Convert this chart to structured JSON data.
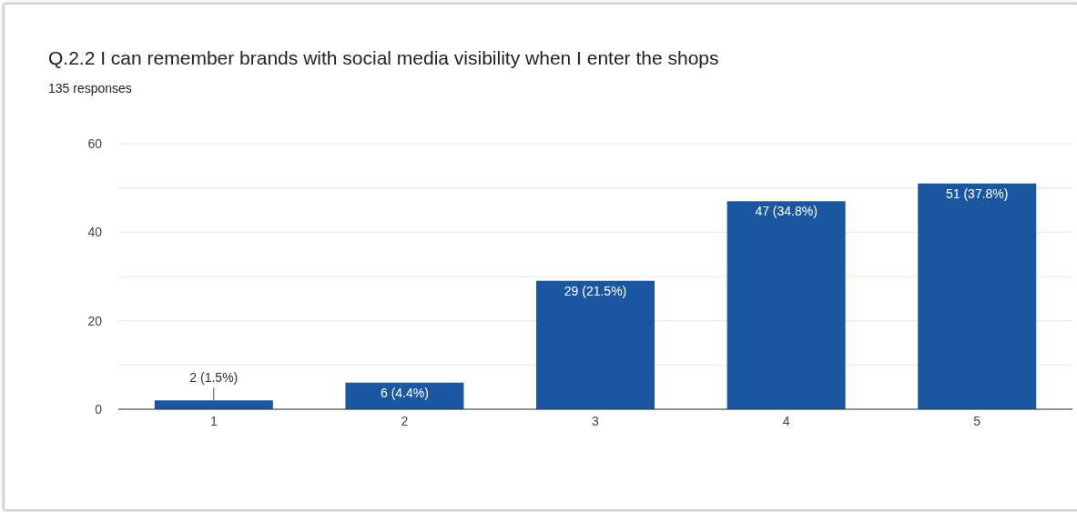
{
  "chart_data": {
    "type": "bar",
    "title": "Q.2.2 I can remember brands with social media visibility when I enter the shops",
    "subtitle": "135 responses",
    "categories": [
      "1",
      "2",
      "3",
      "4",
      "5"
    ],
    "values": [
      2,
      6,
      29,
      47,
      51
    ],
    "value_labels": [
      "2 (1.5%)",
      "6 (4.4%)",
      "29 (21.5%)",
      "47 (34.8%)",
      "51 (37.8%)"
    ],
    "color": "#1a57a0",
    "ylim": [
      0,
      60
    ],
    "yticks": [
      0,
      {
        "value": 10,
        "label": null
      },
      20,
      {
        "value": 30,
        "label": null
      },
      40,
      {
        "value": 50,
        "label": null
      },
      60
    ],
    "grid": "y",
    "legend": false
  }
}
